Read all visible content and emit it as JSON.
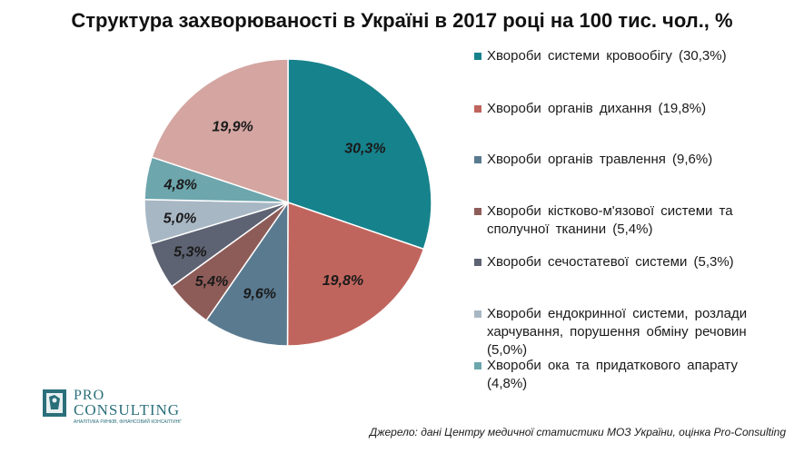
{
  "chart_data": {
    "type": "pie",
    "title": "Структура захворюваності в Україні в 2017 році на 100 тис. чол., %",
    "series": [
      {
        "name": "Хвороби системи кровообігу (30,3%)",
        "value": 30.3,
        "label": "30,3%",
        "color": "#16828c"
      },
      {
        "name": "Хвороби органів дихання (19,8%)",
        "value": 19.8,
        "label": "19,8%",
        "color": "#c0655d"
      },
      {
        "name": "Хвороби органів травлення (9,6%)",
        "value": 9.6,
        "label": "9,6%",
        "color": "#5a7a90"
      },
      {
        "name": "Хвороби кістково-м'язової системи та сполучної тканини (5,4%)",
        "value": 5.4,
        "label": "5,4%",
        "color": "#8e5c58"
      },
      {
        "name": "Хвороби сечостатевої системи (5,3%)",
        "value": 5.3,
        "label": "5,3%",
        "color": "#5d6372"
      },
      {
        "name": "Хвороби ендокринної системи, розлади харчування, порушення обміну речовин (5,0%)",
        "value": 5.0,
        "label": "5,0%",
        "color": "#a8b7c4"
      },
      {
        "name": "Хвороби ока та придаткового апарату (4,8%)",
        "value": 4.8,
        "label": "4,8%",
        "color": "#6da6ad"
      },
      {
        "value": 19.9,
        "label": "19,9%",
        "color": "#d4a5a1"
      }
    ],
    "legend_placement": "right"
  },
  "logo": {
    "line1": "PRO",
    "line2": "CONSULTING",
    "tagline": "АНАЛІТИКА РИНКІВ, ФІНАНСОВИЙ КОНСАЛТИНГ"
  },
  "source": "Джерело: дані Центру медичної статистики МОЗ України, оцінка Pro-Consulting"
}
